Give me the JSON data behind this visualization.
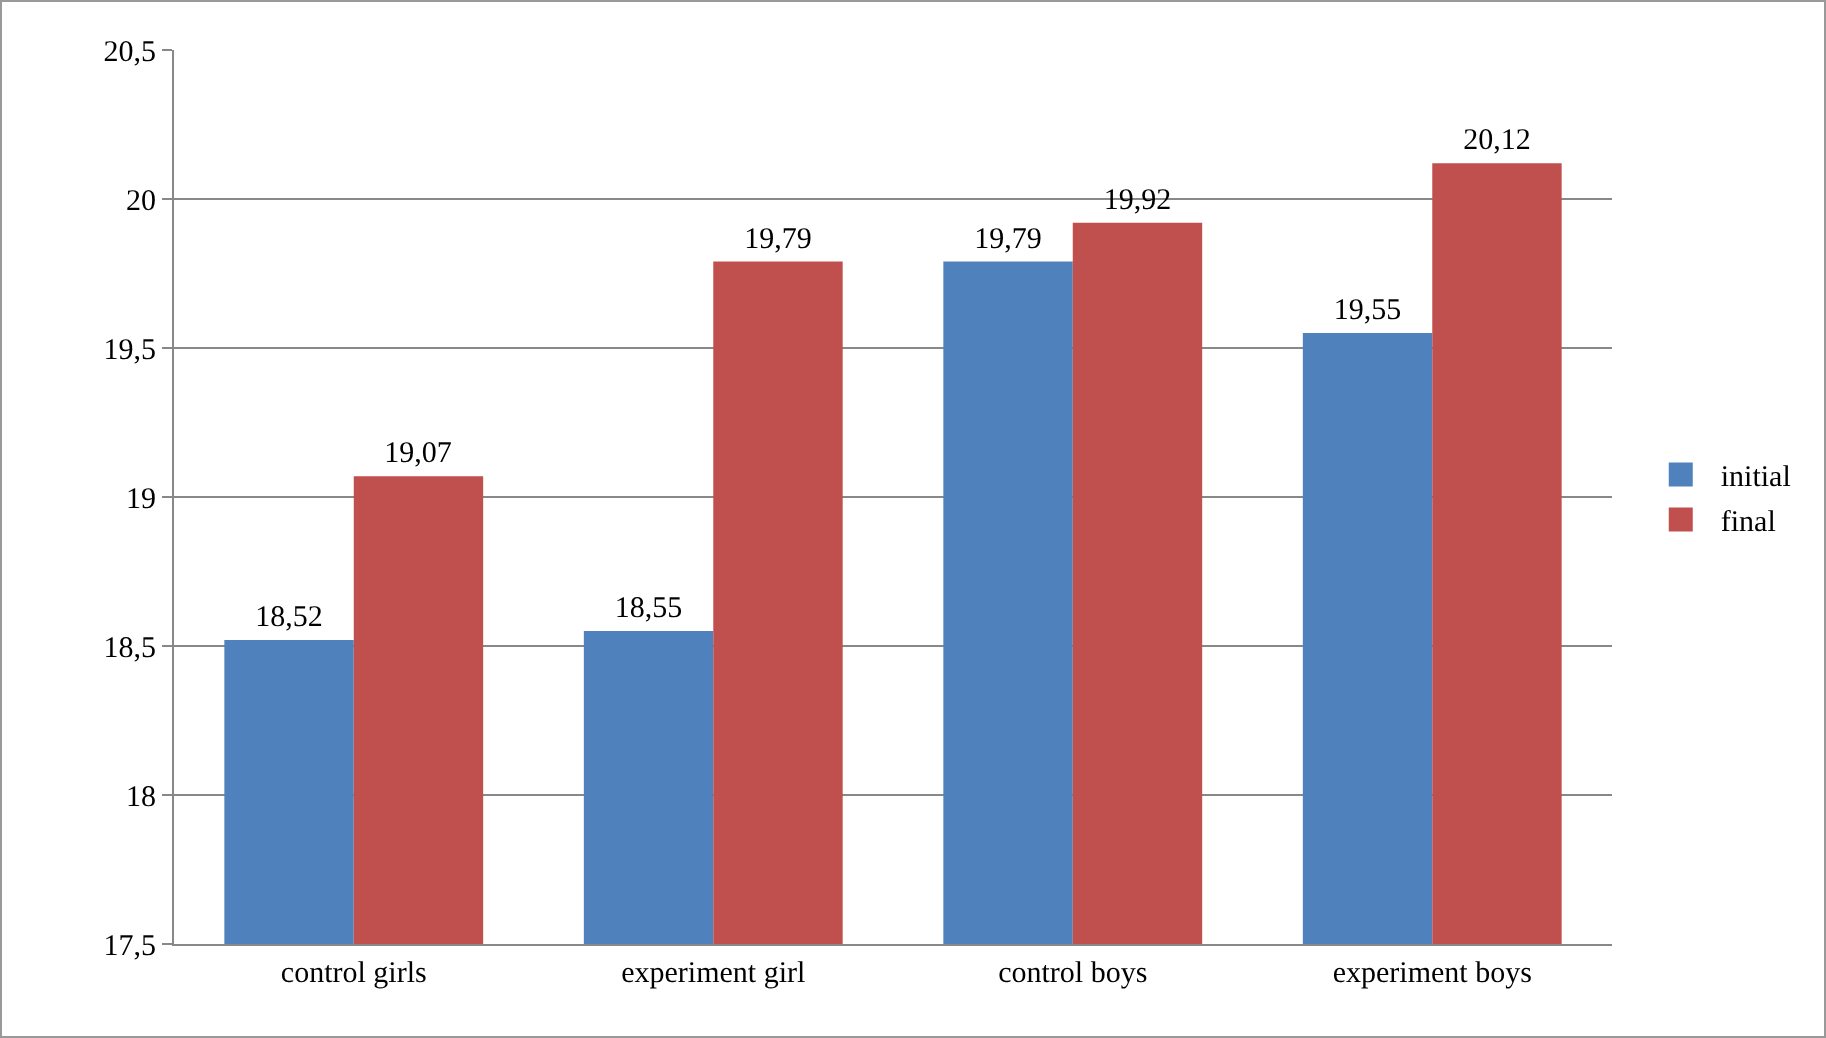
{
  "chart_data": {
    "type": "bar",
    "categories": [
      "control girls",
      "experiment girl",
      "control boys",
      "experiment boys"
    ],
    "series": [
      {
        "name": "initial",
        "color": "#4f81bd",
        "values": [
          18.52,
          18.55,
          19.79,
          19.55
        ],
        "value_labels": [
          "18,52",
          "18,55",
          "19,79",
          "19,55"
        ]
      },
      {
        "name": "final",
        "color": "#c0504d",
        "values": [
          19.07,
          19.79,
          19.92,
          20.12
        ],
        "value_labels": [
          "19,07",
          "19,79",
          "19,92",
          "20,12"
        ]
      }
    ],
    "ylim": [
      17.5,
      20.5
    ],
    "yticks": [
      {
        "value": 17.5,
        "label": "17,5"
      },
      18,
      {
        "value": 18.5,
        "label": "18,5"
      },
      19,
      {
        "value": 19.5,
        "label": "19,5"
      },
      20,
      {
        "value": 20.5,
        "label": "20,5"
      }
    ],
    "grid": "y",
    "legend": "right"
  }
}
